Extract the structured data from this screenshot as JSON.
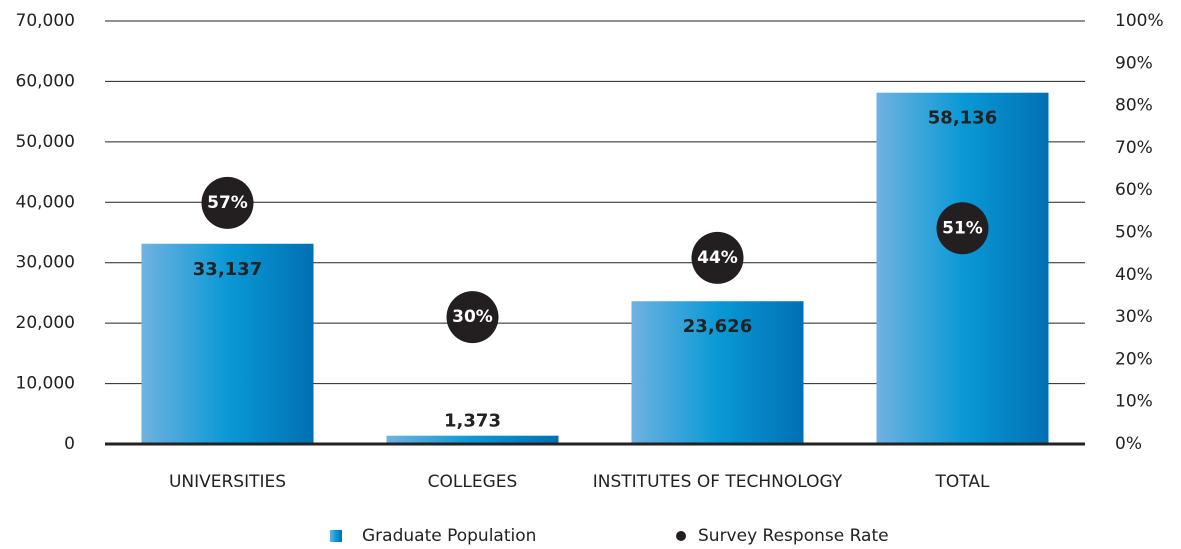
{
  "chart_data": {
    "type": "bar",
    "categories": [
      "UNIVERSITIES",
      "COLLEGES",
      "INSTITUTES OF TECHNOLOGY",
      "TOTAL"
    ],
    "series": [
      {
        "name": "Graduate Population",
        "color": "#0a8fd0",
        "values": [
          33137,
          1373,
          23626,
          58136
        ],
        "value_labels": [
          "33,137",
          "1,373",
          "23,626",
          "58,136"
        ]
      },
      {
        "name": "Survey Response Rate",
        "color": "#231f20",
        "axis": "y2",
        "type": "dot",
        "values": [
          57,
          30,
          44,
          51
        ],
        "value_labels": [
          "57%",
          "30%",
          "44%",
          "51%"
        ]
      }
    ],
    "ylim": [
      0,
      70000
    ],
    "yticks": [
      0,
      {
        "value": 10000,
        "label": "10,000"
      },
      {
        "value": 20000,
        "label": "20,000"
      },
      {
        "value": 30000,
        "label": "30,000"
      },
      {
        "value": 40000,
        "label": "40,000"
      },
      {
        "value": 50000,
        "label": "50,000"
      },
      {
        "value": 60000,
        "label": "60,000"
      },
      {
        "value": 70000,
        "label": "70,000"
      }
    ],
    "y2lim": [
      0,
      100
    ],
    "y2ticks": [
      {
        "value": 0,
        "label": "0%"
      },
      {
        "value": 10,
        "label": "10%"
      },
      {
        "value": 20,
        "label": "20%"
      },
      {
        "value": 30,
        "label": "30%"
      },
      {
        "value": 40,
        "label": "40%"
      },
      {
        "value": 50,
        "label": "50%"
      },
      {
        "value": 60,
        "label": "60%"
      },
      {
        "value": 70,
        "label": "70%"
      },
      {
        "value": 80,
        "label": "80%"
      },
      {
        "value": 90,
        "label": "90%"
      },
      {
        "value": 100,
        "label": "100%"
      }
    ],
    "grid": true,
    "legend": "bottom"
  }
}
